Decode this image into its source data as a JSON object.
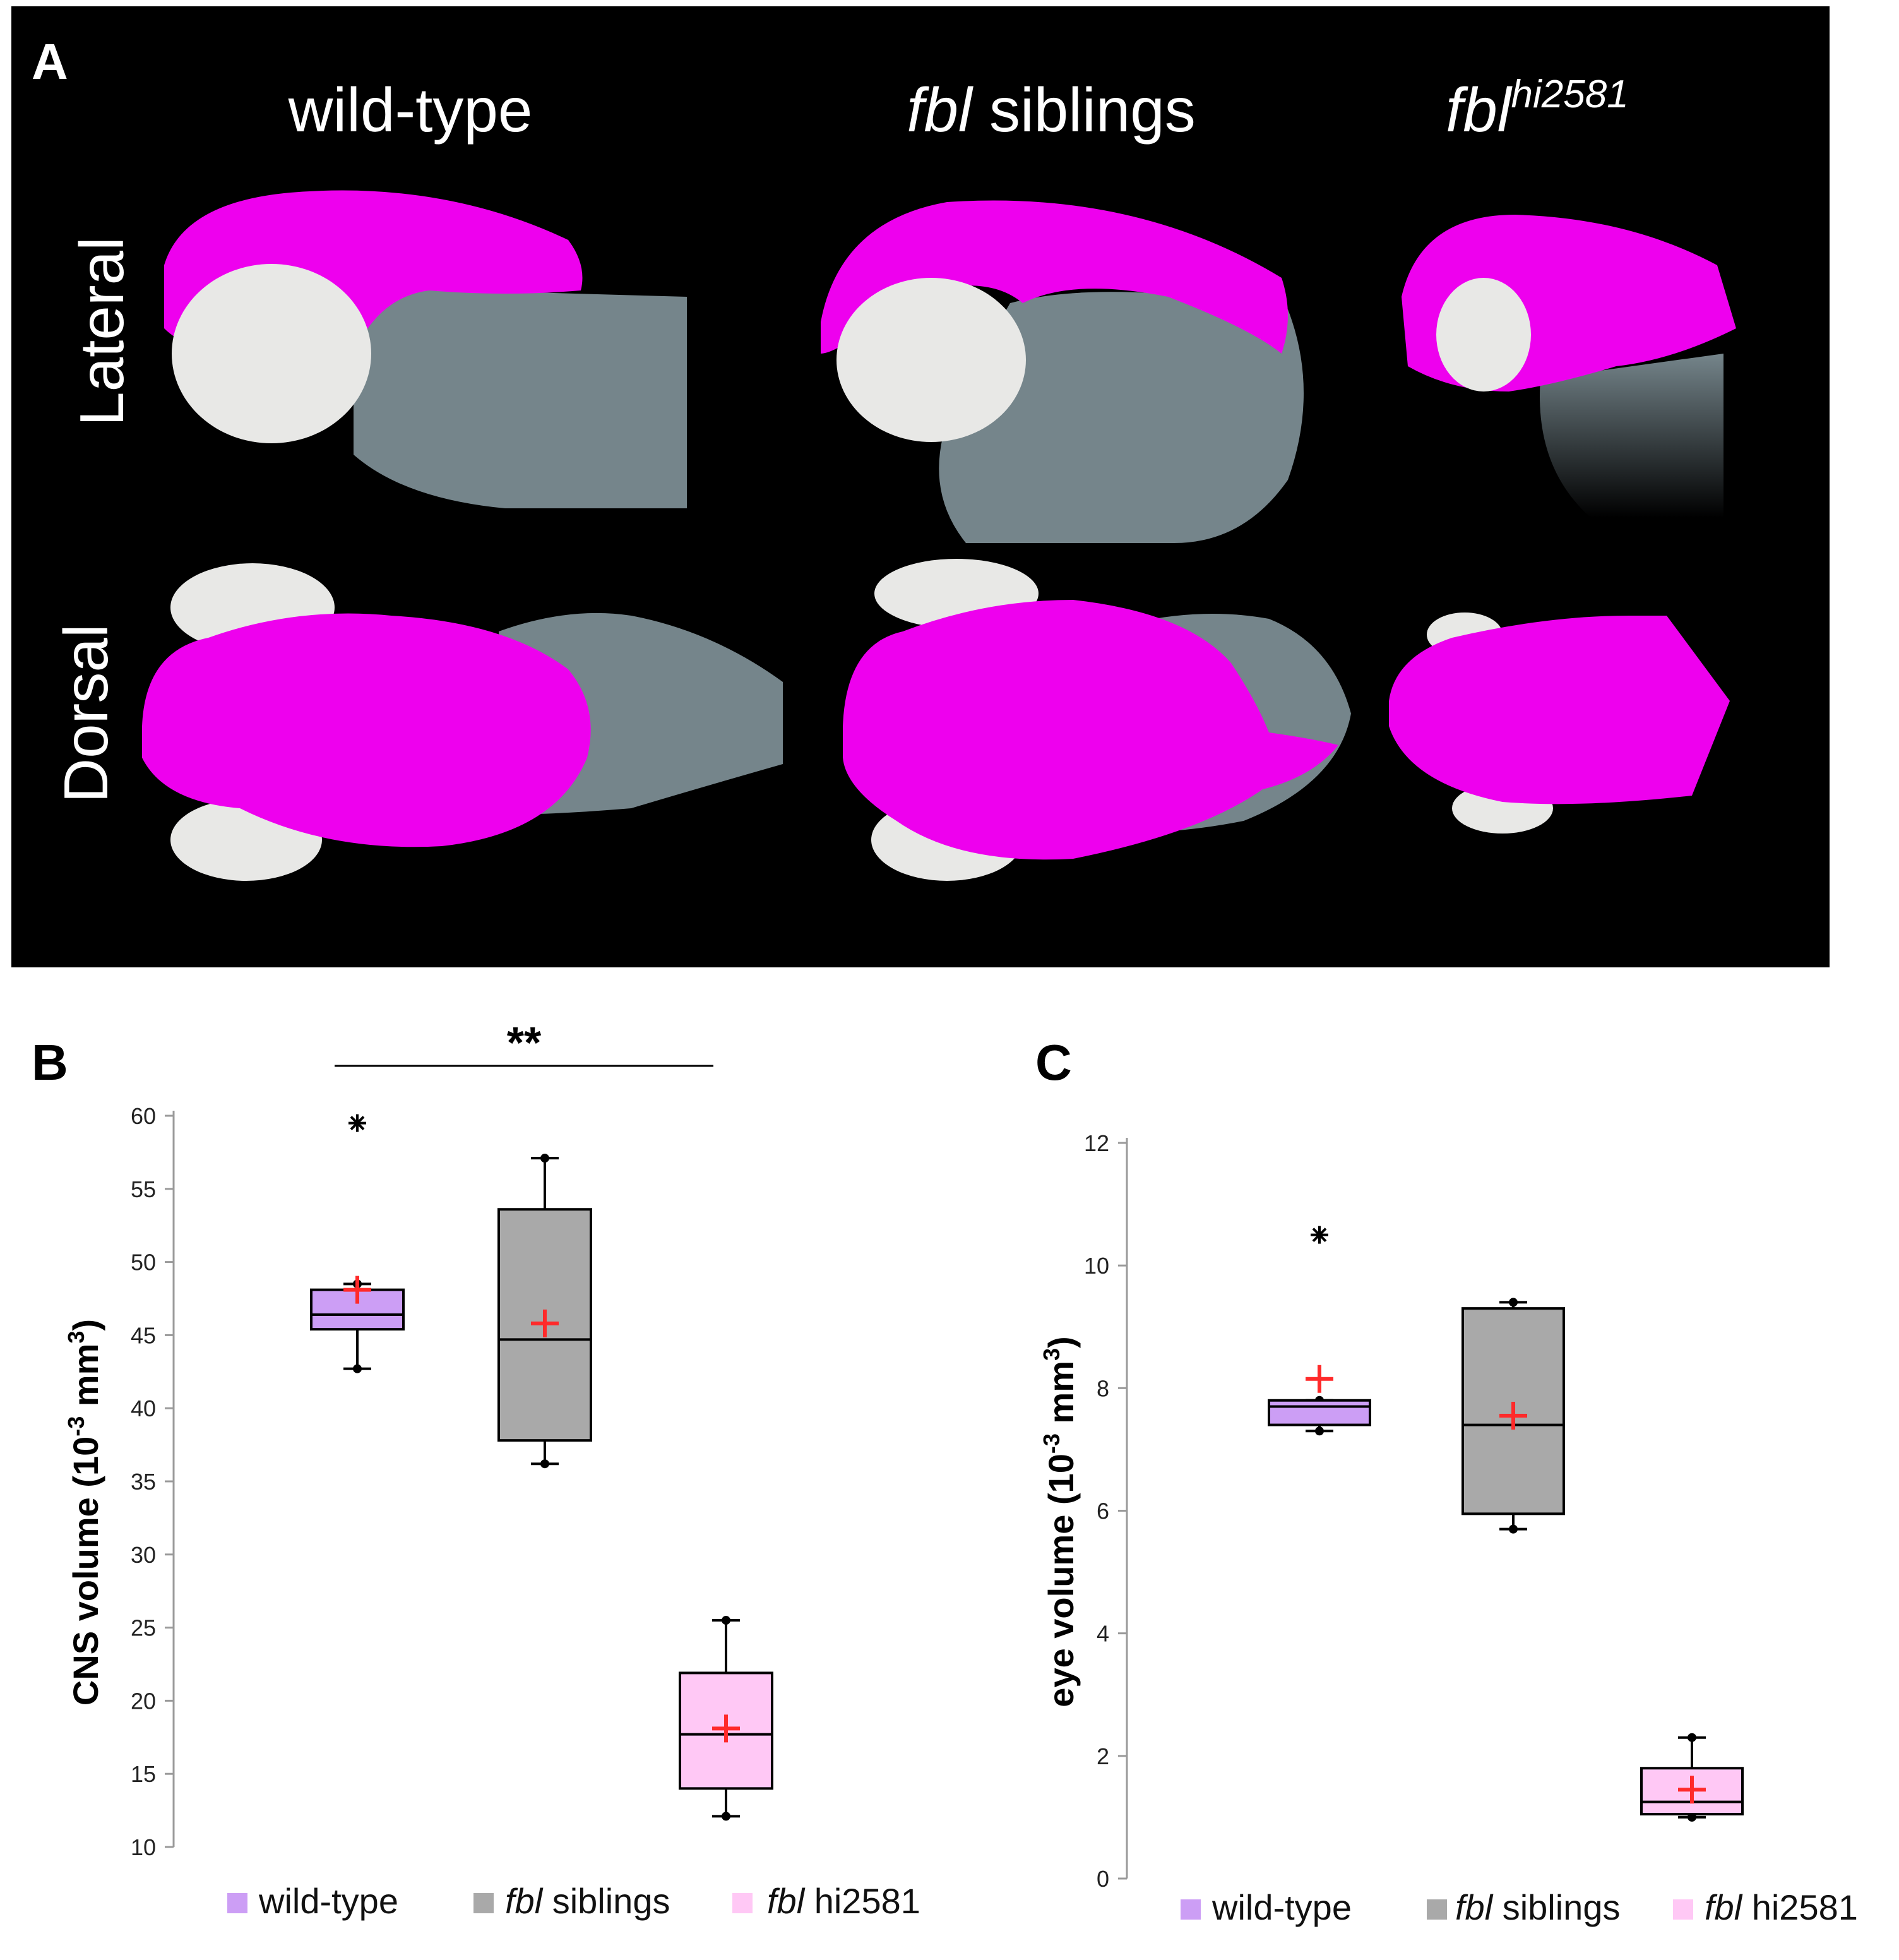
{
  "panel_a": {
    "letter": "A",
    "columns": [
      {
        "plain": "wild-type",
        "italic": "",
        "sup": ""
      },
      {
        "plain": " siblings",
        "italic": "fbl",
        "sup": ""
      },
      {
        "plain": "",
        "italic": "fbl",
        "sup": "hi2581"
      }
    ],
    "rows": [
      "Lateral",
      "Dorsal"
    ],
    "colors": {
      "background": "#000000",
      "cns": "#ee00ee",
      "eye": "#e8e8e6",
      "body": "#75858b"
    }
  },
  "significance": {
    "label": "**"
  },
  "legend": [
    {
      "italic": "",
      "plain": "wild-type",
      "color": "#cc9ef5"
    },
    {
      "italic": "fbl",
      "plain": " siblings",
      "color": "#a9a9a9"
    },
    {
      "italic": "fbl",
      "plain": " hi2581",
      "color": "#ffc8f5"
    }
  ],
  "chart_data": [
    {
      "panel": "B",
      "type": "box",
      "ylabel_parts": {
        "pre": "CNS volume (10",
        "sup1": "-3",
        "mid": " mm",
        "sup2": "3",
        "post": ")"
      },
      "ylim": [
        10,
        60
      ],
      "yticks": [
        10,
        15,
        20,
        25,
        30,
        35,
        40,
        45,
        50,
        55,
        60
      ],
      "series": [
        {
          "name": "wild-type",
          "color": "#cc9ef5",
          "min": 42.7,
          "q1": 45.4,
          "median": 46.4,
          "q3": 48.1,
          "max": 48.5,
          "mean": 48.1,
          "outliers": [
            59.5
          ]
        },
        {
          "name": "fbl siblings",
          "color": "#a9a9a9",
          "min": 36.2,
          "q1": 37.8,
          "median": 44.7,
          "q3": 53.6,
          "max": 57.1,
          "mean": 45.8,
          "outliers": []
        },
        {
          "name": "fbl hi2581",
          "color": "#ffc8f5",
          "min": 12.1,
          "q1": 14.0,
          "median": 17.7,
          "q3": 21.9,
          "max": 25.5,
          "mean": 18.1,
          "outliers": []
        }
      ]
    },
    {
      "panel": "C",
      "type": "box",
      "ylabel_parts": {
        "pre": "eye volume (10",
        "sup1": "-3",
        "mid": " mm",
        "sup2": "3",
        "post": ")"
      },
      "ylim": [
        0,
        12
      ],
      "yticks": [
        0,
        2,
        4,
        6,
        8,
        10,
        12
      ],
      "series": [
        {
          "name": "wild-type",
          "color": "#cc9ef5",
          "min": 7.3,
          "q1": 7.4,
          "median": 7.7,
          "q3": 7.8,
          "max": 7.8,
          "mean": 8.15,
          "outliers": [
            10.5
          ]
        },
        {
          "name": "fbl siblings",
          "color": "#a9a9a9",
          "min": 5.7,
          "q1": 5.95,
          "median": 7.4,
          "q3": 9.3,
          "max": 9.4,
          "mean": 7.55,
          "outliers": []
        },
        {
          "name": "fbl hi2581",
          "color": "#ffc8f5",
          "min": 1.0,
          "q1": 1.05,
          "median": 1.25,
          "q3": 1.8,
          "max": 2.3,
          "mean": 1.45,
          "outliers": []
        }
      ]
    }
  ]
}
